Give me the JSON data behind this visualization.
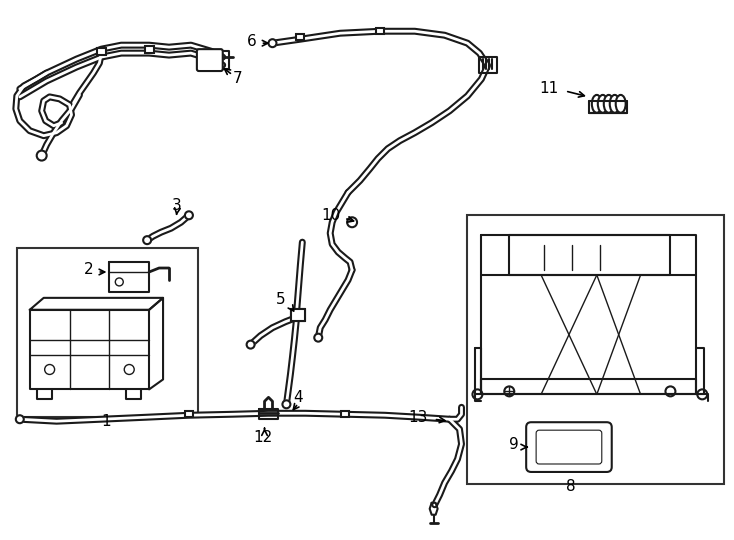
{
  "background_color": "#ffffff",
  "line_color": "#1a1a1a",
  "figsize": [
    7.34,
    5.4
  ],
  "dpi": 100
}
